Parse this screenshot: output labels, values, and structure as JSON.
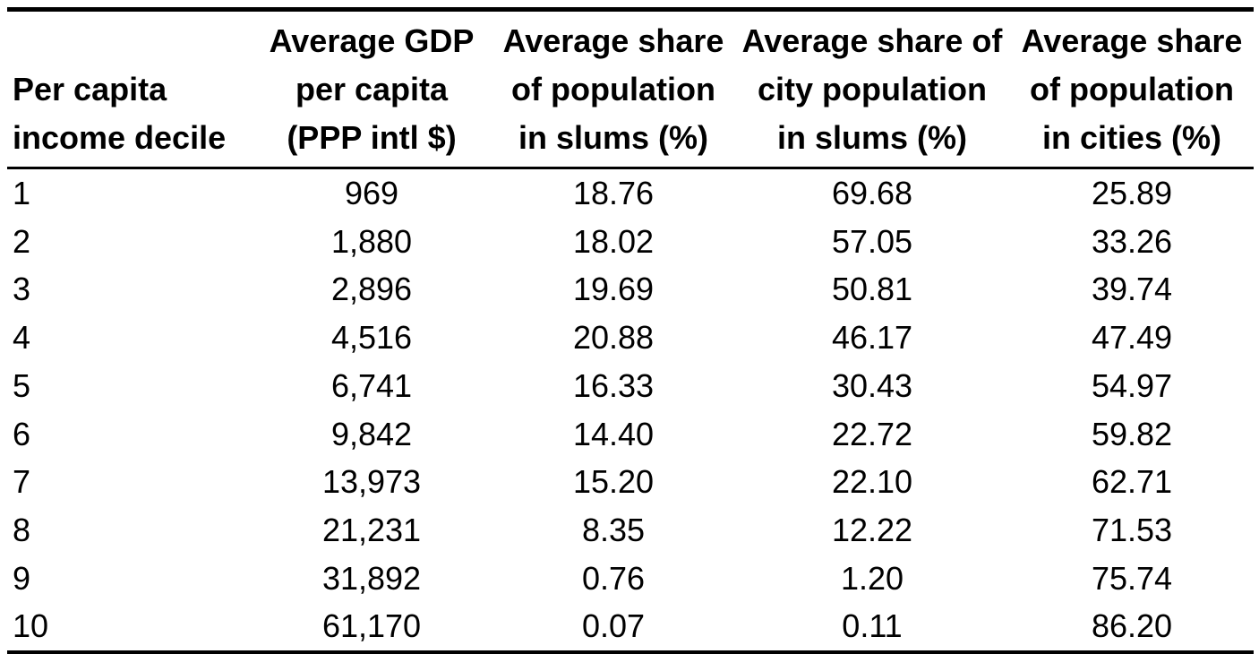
{
  "colors": {
    "background": "#ffffff",
    "text": "#000000",
    "rule": "#000000"
  },
  "table": {
    "columns": [
      {
        "id": "decile",
        "align": "left",
        "header_lines": [
          "Per capita",
          "income decile"
        ]
      },
      {
        "id": "gdp",
        "align": "center",
        "header_lines": [
          "Average GDP",
          "per capita",
          "(PPP intl $)"
        ]
      },
      {
        "id": "slums",
        "align": "center",
        "header_lines": [
          "Average share",
          "of population",
          "in slums (%)"
        ]
      },
      {
        "id": "city_slums",
        "align": "center",
        "header_lines": [
          "Average share of",
          "city population",
          "in slums (%)"
        ]
      },
      {
        "id": "cities",
        "align": "center",
        "header_lines": [
          "Average share",
          "of population",
          "in cities (%)"
        ]
      }
    ],
    "rows": [
      [
        "1",
        "969",
        "18.76",
        "69.68",
        "25.89"
      ],
      [
        "2",
        "1,880",
        "18.02",
        "57.05",
        "33.26"
      ],
      [
        "3",
        "2,896",
        "19.69",
        "50.81",
        "39.74"
      ],
      [
        "4",
        "4,516",
        "20.88",
        "46.17",
        "47.49"
      ],
      [
        "5",
        "6,741",
        "16.33",
        "30.43",
        "54.97"
      ],
      [
        "6",
        "9,842",
        "14.40",
        "22.72",
        "59.82"
      ],
      [
        "7",
        "13,973",
        "15.20",
        "22.10",
        "62.71"
      ],
      [
        "8",
        "21,231",
        "8.35",
        "12.22",
        "71.53"
      ],
      [
        "9",
        "31,892",
        "0.76",
        "1.20",
        "75.74"
      ],
      [
        "10",
        "61,170",
        "0.07",
        "0.11",
        "86.20"
      ]
    ]
  },
  "chart_data": {
    "type": "table",
    "title": "",
    "categories": [
      1,
      2,
      3,
      4,
      5,
      6,
      7,
      8,
      9,
      10
    ],
    "category_label": "Per capita income decile",
    "series": [
      {
        "name": "Average GDP per capita (PPP intl $)",
        "values": [
          969,
          1880,
          2896,
          4516,
          6741,
          9842,
          13973,
          21231,
          31892,
          61170
        ]
      },
      {
        "name": "Average share of population in slums (%)",
        "values": [
          18.76,
          18.02,
          19.69,
          20.88,
          16.33,
          14.4,
          15.2,
          8.35,
          0.76,
          0.07
        ]
      },
      {
        "name": "Average share of city population in slums (%)",
        "values": [
          69.68,
          57.05,
          50.81,
          46.17,
          30.43,
          22.72,
          22.1,
          12.22,
          1.2,
          0.11
        ]
      },
      {
        "name": "Average share of population in cities (%)",
        "values": [
          25.89,
          33.26,
          39.74,
          47.49,
          54.97,
          59.82,
          62.71,
          71.53,
          75.74,
          86.2
        ]
      }
    ]
  }
}
